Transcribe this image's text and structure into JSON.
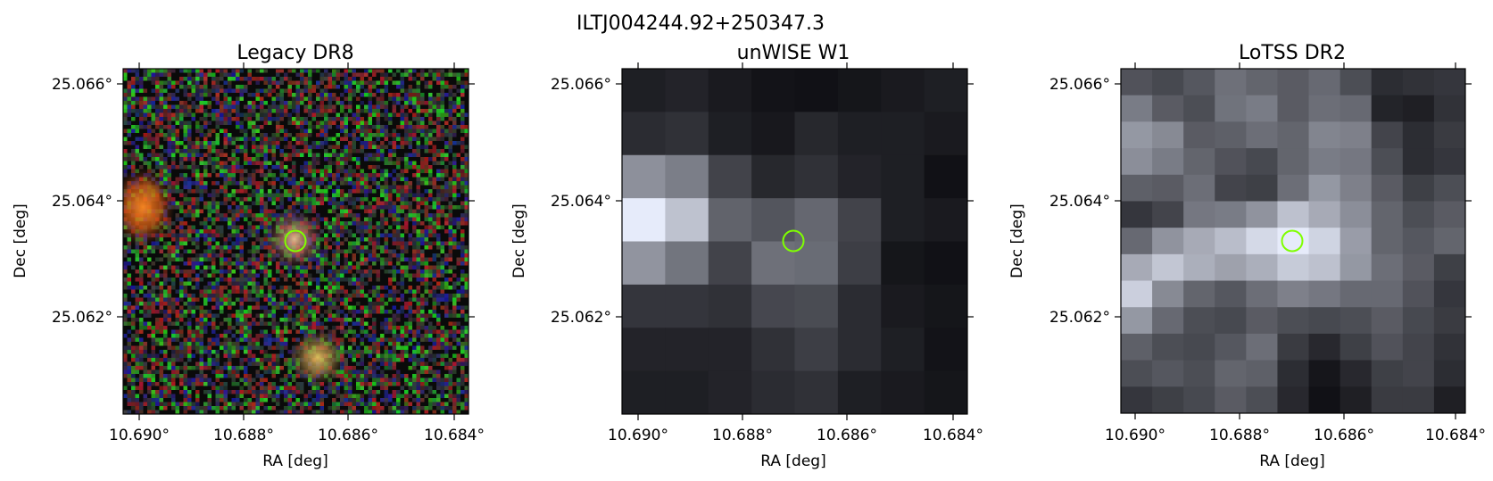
{
  "figure": {
    "suptitle": "ILTJ004244.92+250347.3"
  },
  "panels": [
    {
      "title": "Legacy DR8",
      "xlabel": "RA [deg]",
      "ylabel": "Dec [deg]",
      "xticks": [
        "10.690°",
        "10.688°",
        "10.686°",
        "10.684°"
      ],
      "yticks": [
        "25.066°",
        "25.064°",
        "25.062°"
      ],
      "marker_color": "#7fff00"
    },
    {
      "title": "unWISE W1",
      "xlabel": "RA [deg]",
      "ylabel": "Dec [deg]",
      "xticks": [
        "10.690°",
        "10.688°",
        "10.686°",
        "10.684°"
      ],
      "yticks": [
        "25.066°",
        "25.064°",
        "25.062°"
      ],
      "marker_color": "#7fff00"
    },
    {
      "title": "LoTSS DR2",
      "xlabel": "RA [deg]",
      "ylabel": "Dec [deg]",
      "xticks": [
        "10.690°",
        "10.688°",
        "10.686°",
        "10.684°"
      ],
      "yticks": [
        "25.066°",
        "25.064°",
        "25.062°"
      ],
      "marker_color": "#7fff00"
    }
  ]
}
